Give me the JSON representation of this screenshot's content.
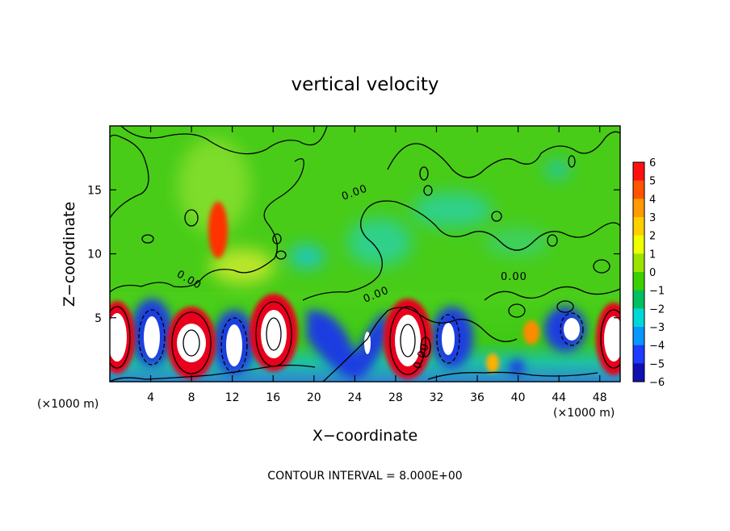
{
  "chart_data": {
    "type": "heatmap",
    "title": "vertical velocity",
    "xlabel": "X−coordinate",
    "ylabel": "Z−coordinate",
    "x_unit_label": "(×1000 m)",
    "y_unit_label": "(×1000 m)",
    "footer": "CONTOUR INTERVAL = 8.000E+00",
    "contour_label": "0.00",
    "xlim": [
      0,
      50
    ],
    "ylim": [
      0,
      20
    ],
    "x_ticks": [
      4,
      8,
      12,
      16,
      20,
      24,
      28,
      32,
      36,
      40,
      44,
      48
    ],
    "y_ticks": [
      5,
      10,
      15
    ],
    "colorbar": {
      "range": [
        -6,
        6
      ],
      "ticks": [
        "6",
        "5",
        "4",
        "3",
        "2",
        "1",
        "0",
        "−1",
        "−2",
        "−3",
        "−4",
        "−5",
        "−6"
      ]
    },
    "features": [
      {
        "kind": "updraft",
        "x": 0.5,
        "z": 3.2,
        "w": 6
      },
      {
        "kind": "downdraft",
        "x": 4,
        "z": 3.3,
        "w": -6
      },
      {
        "kind": "updraft",
        "x": 8,
        "z": 3.0,
        "w": 6
      },
      {
        "kind": "downdraft",
        "x": 11.5,
        "z": 3.2,
        "w": -6
      },
      {
        "kind": "updraft",
        "x": 16,
        "z": 3.6,
        "w": 6
      },
      {
        "kind": "downdraft",
        "x": 22.5,
        "z": 3.0,
        "w": -5
      },
      {
        "kind": "downdraft",
        "x": 25,
        "z": 3.5,
        "w": -5
      },
      {
        "kind": "updraft",
        "x": 29,
        "z": 3.3,
        "w": 6
      },
      {
        "kind": "downdraft",
        "x": 33,
        "z": 3.5,
        "w": -6
      },
      {
        "kind": "updraft",
        "x": 40,
        "z": 3.8,
        "w": 4
      },
      {
        "kind": "downdraft",
        "x": 44,
        "z": 4.0,
        "w": -6
      },
      {
        "kind": "updraft",
        "x": 48.5,
        "z": 3.0,
        "w": 6
      },
      {
        "kind": "updraft",
        "x": 11,
        "z": 12,
        "w": 5
      }
    ]
  }
}
